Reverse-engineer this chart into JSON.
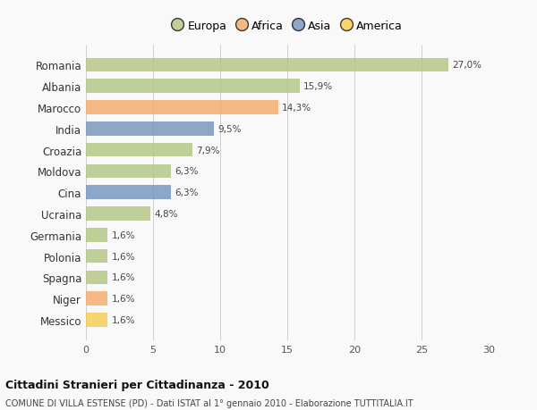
{
  "countries": [
    "Romania",
    "Albania",
    "Marocco",
    "India",
    "Croazia",
    "Moldova",
    "Cina",
    "Ucraina",
    "Germania",
    "Polonia",
    "Spagna",
    "Niger",
    "Messico"
  ],
  "values": [
    27.0,
    15.9,
    14.3,
    9.5,
    7.9,
    6.3,
    6.3,
    4.8,
    1.6,
    1.6,
    1.6,
    1.6,
    1.6
  ],
  "labels": [
    "27,0%",
    "15,9%",
    "14,3%",
    "9,5%",
    "7,9%",
    "6,3%",
    "6,3%",
    "4,8%",
    "1,6%",
    "1,6%",
    "1,6%",
    "1,6%",
    "1,6%"
  ],
  "continents": [
    "Europa",
    "Europa",
    "Africa",
    "Asia",
    "Europa",
    "Europa",
    "Asia",
    "Europa",
    "Europa",
    "Europa",
    "Europa",
    "Africa",
    "America"
  ],
  "colors": {
    "Europa": "#adc178",
    "Africa": "#f4a460",
    "Asia": "#6b8cba",
    "America": "#f5c842"
  },
  "title": "Cittadini Stranieri per Cittadinanza - 2010",
  "subtitle": "COMUNE DI VILLA ESTENSE (PD) - Dati ISTAT al 1° gennaio 2010 - Elaborazione TUTTITALIA.IT",
  "xlim": [
    0,
    30
  ],
  "xticks": [
    0,
    5,
    10,
    15,
    20,
    25,
    30
  ],
  "background_color": "#f9f9f9",
  "bar_alpha": 0.75
}
